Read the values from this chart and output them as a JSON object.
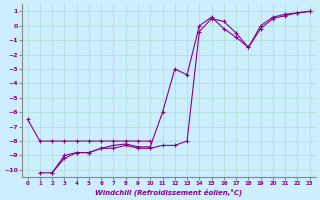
{
  "xlabel": "Windchill (Refroidissement éolien,°C)",
  "bg_color": "#cceeff",
  "grid_color": "#aaddcc",
  "line_color": "#880088",
  "xlim": [
    -0.5,
    23.5
  ],
  "ylim": [
    -10.5,
    1.5
  ],
  "yticks": [
    1,
    0,
    -1,
    -2,
    -3,
    -4,
    -5,
    -6,
    -7,
    -8,
    -9,
    -10
  ],
  "xticks": [
    0,
    1,
    2,
    3,
    4,
    5,
    6,
    7,
    8,
    9,
    10,
    11,
    12,
    13,
    14,
    15,
    16,
    17,
    18,
    19,
    20,
    21,
    22,
    23
  ],
  "line1_x": [
    0,
    1,
    2,
    3,
    4,
    5,
    6,
    7,
    8,
    9,
    10
  ],
  "line1_y": [
    -6.5,
    -8.0,
    -8.0,
    -8.0,
    -8.0,
    -8.0,
    -8.0,
    -8.0,
    -8.0,
    -8.0,
    -8.0
  ],
  "line2_x": [
    2,
    3,
    4,
    5,
    6,
    7,
    8,
    9,
    10,
    11,
    12,
    13,
    14,
    15,
    16,
    17,
    18,
    19,
    20,
    21,
    22,
    23
  ],
  "line2_y": [
    -10.2,
    -9.2,
    -8.8,
    -8.8,
    -8.5,
    -8.5,
    -8.3,
    -8.5,
    -8.5,
    -8.3,
    -8.3,
    -8.0,
    -0.4,
    0.5,
    0.3,
    -0.5,
    -1.5,
    -0.2,
    0.5,
    0.7,
    0.9,
    1.0
  ],
  "line3_x": [
    1,
    2,
    3,
    4,
    5,
    6,
    7,
    8,
    9,
    10,
    11,
    12,
    13,
    14,
    15,
    16,
    17,
    18,
    19,
    20,
    21,
    22,
    23
  ],
  "line3_y": [
    -10.2,
    -10.2,
    -9.0,
    -8.8,
    -8.8,
    -8.5,
    -8.3,
    -8.2,
    -8.4,
    -8.4,
    -6.0,
    -3.0,
    -3.4,
    0.0,
    0.6,
    -0.2,
    -0.8,
    -1.5,
    0.0,
    0.6,
    0.8,
    0.9,
    1.0
  ]
}
